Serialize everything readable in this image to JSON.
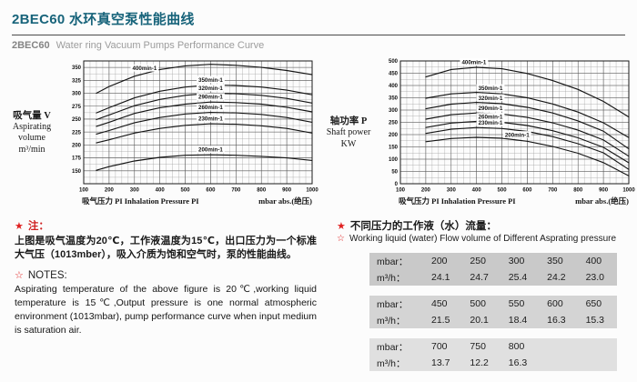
{
  "header": {
    "title": "2BEC60 水环真空泵性能曲线",
    "subtitle_model": "2BEC60",
    "subtitle_text": "Water ring Vacuum Pumps Performance Curve"
  },
  "colors": {
    "accent_teal": "#17637a",
    "note_red": "#e02020",
    "curve_black": "#141414",
    "grid_minor": "#9b9b9b",
    "grid_major": "#565656",
    "table_bg_1": "#c9c9c9",
    "table_bg_2": "#d4d4d4",
    "table_bg_3": "#e0e0e0"
  },
  "chart_data": [
    {
      "id": "aspirating-volume",
      "type": "line",
      "title": "",
      "ylabel_lines": [
        "吸气量 V",
        "Aspirating",
        "volume",
        "m³/min"
      ],
      "xlabel": "吸气压力 PI Inhalation Pressure PI",
      "xunit": "mbar abs.(绝压)",
      "xlim": [
        100,
        1000
      ],
      "ylim": [
        125,
        362.5
      ],
      "xticks": [
        100,
        200,
        300,
        400,
        500,
        600,
        700,
        800,
        900,
        1000
      ],
      "yticks": [
        150,
        175,
        200,
        225,
        250,
        275,
        300,
        325,
        350
      ],
      "grid": {
        "x_minor": 25,
        "y_minor": 12.5
      },
      "x": [
        150,
        200,
        300,
        400,
        500,
        600,
        700,
        800,
        900,
        1000
      ],
      "series": [
        {
          "name": "400min-1",
          "label_x": 340,
          "values": [
            300,
            313,
            333,
            346,
            353,
            356,
            354,
            350,
            344,
            336
          ]
        },
        {
          "name": "350min-1",
          "label_x": 600,
          "values": [
            262,
            272,
            291,
            304,
            312,
            316,
            315,
            312,
            306,
            297
          ]
        },
        {
          "name": "320min-1",
          "label_x": 600,
          "values": [
            249,
            258,
            276,
            288,
            296,
            300,
            299,
            296,
            290,
            281
          ]
        },
        {
          "name": "290min-1",
          "label_x": 600,
          "values": [
            236,
            244,
            261,
            272,
            279,
            283,
            282,
            279,
            273,
            264
          ]
        },
        {
          "name": "260min-1",
          "label_x": 600,
          "values": [
            221,
            228,
            243,
            253,
            260,
            263,
            262,
            259,
            253,
            244
          ]
        },
        {
          "name": "230min-1",
          "label_x": 600,
          "values": [
            204,
            210,
            223,
            232,
            238,
            241,
            240,
            237,
            232,
            223
          ]
        },
        {
          "name": "200min-1",
          "label_x": 600,
          "values": [
            151,
            158,
            169,
            176,
            180,
            181,
            180,
            178,
            175,
            170
          ]
        }
      ]
    },
    {
      "id": "shaft-power",
      "type": "line",
      "title": "",
      "ylabel_lines": [
        "轴功率 P",
        "Shaft power",
        "KW"
      ],
      "xlabel": "吸气压力 PI Inhalation Pressure PI",
      "xunit": "mbar abs.(绝压)",
      "xlim": [
        100,
        1000
      ],
      "ylim": [
        0,
        500
      ],
      "xticks": [
        100,
        200,
        300,
        400,
        500,
        600,
        700,
        800,
        900,
        1000
      ],
      "yticks": [
        0,
        50,
        100,
        150,
        200,
        250,
        300,
        350,
        400,
        450,
        500
      ],
      "grid": {
        "x_minor": 25,
        "y_minor": 25
      },
      "x": [
        200,
        300,
        400,
        500,
        600,
        700,
        800,
        900,
        1000
      ],
      "series": [
        {
          "name": "400min-1",
          "label_x": 390,
          "values": [
            435,
            465,
            474,
            468,
            449,
            420,
            384,
            335,
            272
          ]
        },
        {
          "name": "350min-1",
          "label_x": 455,
          "values": [
            348,
            366,
            372,
            366,
            350,
            325,
            292,
            248,
            188
          ]
        },
        {
          "name": "320min-1",
          "label_x": 455,
          "values": [
            305,
            324,
            331,
            326,
            311,
            288,
            256,
            214,
            142
          ]
        },
        {
          "name": "290min-1",
          "label_x": 455,
          "values": [
            263,
            281,
            288,
            284,
            270,
            248,
            218,
            178,
            112
          ]
        },
        {
          "name": "260min-1",
          "label_x": 455,
          "values": [
            229,
            247,
            254,
            250,
            237,
            216,
            187,
            148,
            85
          ]
        },
        {
          "name": "230min-1",
          "label_x": 455,
          "values": [
            205,
            222,
            229,
            225,
            213,
            192,
            163,
            126,
            58
          ]
        },
        {
          "name": "200min-1",
          "label_x": 560,
          "values": [
            171,
            184,
            189,
            185,
            173,
            152,
            124,
            86,
            32
          ]
        }
      ]
    }
  ],
  "notes_left": {
    "star_solid": "★",
    "heading_zh": "注：",
    "body_zh": "上图是吸气温度为20℃，工作液温度为15℃，出口压力为一个标准大气压（1013mber），吸入介质为饱和空气时，泵的性能曲线。",
    "star_outline": "☆",
    "heading_en": "NOTES:",
    "body_en": "Aspirating temperature of the above figure is 20℃,working liquid temperature is 15℃,Output pressure is one normal atmospheric environment (1013mbar), pump performance curve when input medium is saturation air."
  },
  "notes_right": {
    "star_solid": "★",
    "heading_zh": "不同压力的工作液（水）流量：",
    "star_outline": "☆",
    "heading_en": "Working liquid (water) Flow volume of Different Asprating pressure"
  },
  "flow_tables": [
    {
      "rows": [
        {
          "label": "mbar：",
          "values": [
            "200",
            "250",
            "300",
            "350",
            "400"
          ]
        },
        {
          "label": "m³/h：",
          "values": [
            "24.1",
            "24.7",
            "25.4",
            "24.2",
            "23.0"
          ]
        }
      ]
    },
    {
      "rows": [
        {
          "label": "mbar：",
          "values": [
            "450",
            "500",
            "550",
            "600",
            "650"
          ]
        },
        {
          "label": "m³/h：",
          "values": [
            "21.5",
            "20.1",
            "18.4",
            "16.3",
            "15.3"
          ]
        }
      ]
    },
    {
      "rows": [
        {
          "label": "mbar：",
          "values": [
            "700",
            "750",
            "800",
            "",
            ""
          ]
        },
        {
          "label": "m³/h：",
          "values": [
            "13.7",
            "12.2",
            "16.3",
            "",
            ""
          ]
        }
      ]
    }
  ]
}
